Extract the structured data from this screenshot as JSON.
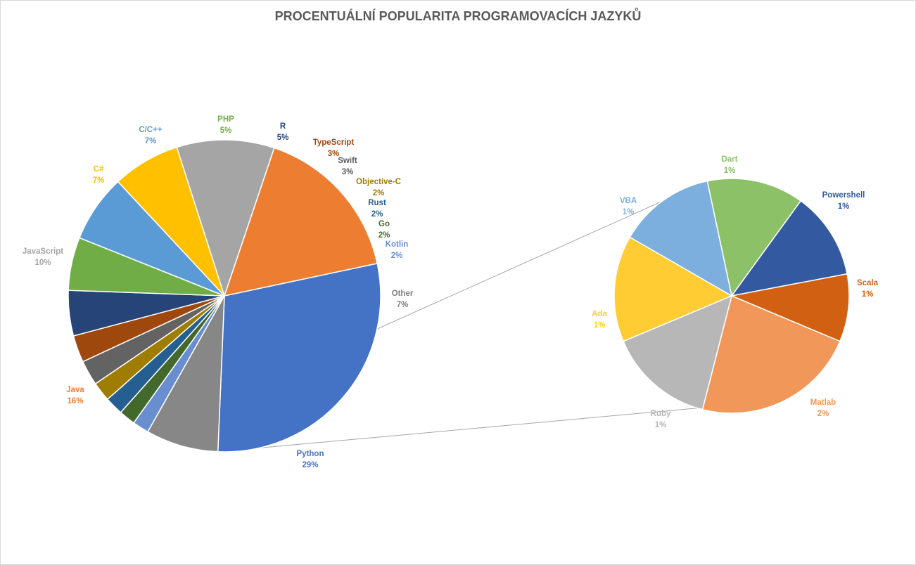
{
  "chart_data": {
    "type": "pie",
    "subtype": "pie-of-pie",
    "title": "PROCENTUÁLNÍ POPULARITA PROGRAMOVACÍCH JAZYKŮ",
    "primary": {
      "slices": [
        {
          "name": "Python",
          "value": 29.0,
          "pct_label": "29%",
          "color": "#4472C4",
          "label_color": "#4472C4"
        },
        {
          "name": "Other",
          "value": 7.5,
          "pct_label": "7%",
          "color": "#878787",
          "label_color": "#7F7F7F"
        },
        {
          "name": "Kotlin",
          "value": 1.7,
          "pct_label": "2%",
          "color": "#698ED0",
          "label_color": "#698ED0"
        },
        {
          "name": "Go",
          "value": 1.7,
          "pct_label": "2%",
          "color": "#43682B",
          "label_color": "#43682B"
        },
        {
          "name": "Rust",
          "value": 1.9,
          "pct_label": "2%",
          "color": "#255E91",
          "label_color": "#255E91"
        },
        {
          "name": "Objective-C",
          "value": 2.0,
          "pct_label": "2%",
          "color": "#9E7D00",
          "label_color": "#9E7D00"
        },
        {
          "name": "Swift",
          "value": 2.6,
          "pct_label": "3%",
          "color": "#636363",
          "label_color": "#595959"
        },
        {
          "name": "TypeScript",
          "value": 2.8,
          "pct_label": "3%",
          "color": "#9E480E",
          "label_color": "#9E480E"
        },
        {
          "name": "R",
          "value": 4.7,
          "pct_label": "5%",
          "color": "#264478",
          "label_color": "#264478"
        },
        {
          "name": "PHP",
          "value": 5.5,
          "pct_label": "5%",
          "color": "#70AD47",
          "label_color": "#70AD47"
        },
        {
          "name": "C/C++",
          "value": 7.0,
          "pct_label": "7%",
          "color": "#5B9BD5",
          "label_color": "#5B9BD5"
        },
        {
          "name": "C#",
          "value": 7.0,
          "pct_label": "7%",
          "color": "#FFC000",
          "label_color": "#FFC000"
        },
        {
          "name": "JavaScript",
          "value": 10.1,
          "pct_label": "10%",
          "color": "#A5A5A5",
          "label_color": "#A5A5A5"
        },
        {
          "name": "Java",
          "value": 16.5,
          "pct_label": "16%",
          "color": "#ED7D31",
          "label_color": "#ED7D31"
        }
      ]
    },
    "secondary": {
      "slices": [
        {
          "name": "Dart",
          "value": 1.0,
          "pct_label": "1%",
          "color": "#8CC168",
          "label_color": "#8CC168"
        },
        {
          "name": "Powershell",
          "value": 0.9,
          "pct_label": "1%",
          "color": "#335AA1",
          "label_color": "#335AA1"
        },
        {
          "name": "Scala",
          "value": 0.7,
          "pct_label": "1%",
          "color": "#D26012",
          "label_color": "#D26012"
        },
        {
          "name": "Matlab",
          "value": 1.7,
          "pct_label": "2%",
          "color": "#F1975A",
          "label_color": "#F1975A"
        },
        {
          "name": "Ruby",
          "value": 1.1,
          "pct_label": "1%",
          "color": "#B7B7B7",
          "label_color": "#B7B7B7"
        },
        {
          "name": "Ada",
          "value": 1.1,
          "pct_label": "1%",
          "color": "#FFCD33",
          "label_color": "#FFCD33"
        },
        {
          "name": "VBA",
          "value": 1.0,
          "pct_label": "1%",
          "color": "#7CAFDD",
          "label_color": "#7CAFDD"
        }
      ]
    },
    "legend": "none",
    "data_labels": "category and percentage"
  }
}
